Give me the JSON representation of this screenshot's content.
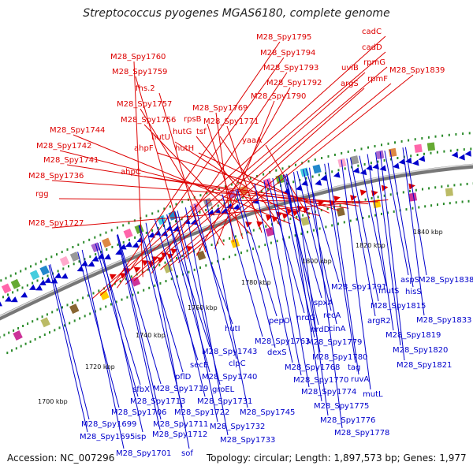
{
  "title": "Streptococcus pyogenes MGAS6180, complete genome",
  "footer": {
    "accession": "Accession: NC_007296",
    "summary": "Topology: circular; Length: 1,897,573 bp; Genes: 1,977"
  },
  "ticks": [
    "1700 kbp",
    "1720 kbp",
    "1740 kbp",
    "1760 kbp",
    "1780 kbp",
    "1800 kbp",
    "1820 kbp",
    "1840 kbp"
  ],
  "forward_labels": [
    "cadC",
    "cadD",
    "M28_Spy1795",
    "M28_Spy1794",
    "uviB",
    "rpmG",
    "M28_Spy1760",
    "M28_Spy1793",
    "argS",
    "rpmF",
    "M28_Spy1839",
    "M28_Spy1759",
    "M28_Spy1792",
    "fhs.2",
    "M28_Spy1790",
    "M28_Spy1757",
    "M28_Spy1769",
    "rpsB",
    "M28_Spy1756",
    "M28_Spy1771",
    "hutG",
    "tsf",
    "M28_Spy1744",
    "hutU",
    "yaaA",
    "M28_Spy1742",
    "hutH",
    "ahpF",
    "M28_Spy1741",
    "ahpC",
    "M28_Spy1736",
    "rgg",
    "M28_Spy1727"
  ],
  "reverse_labels": [
    "M28_Spy1791",
    "M28_Spy1838",
    "aspS",
    "hisS",
    "mutS",
    "M28_Spy1815",
    "spxA",
    "argR2",
    "M28_Spy1833",
    "recA",
    "M28_Spy1819",
    "hutI",
    "pepO",
    "nrdG",
    "cinA",
    "M28_Spy1820",
    "M28_Spy1743",
    "M28_Spy1763",
    "M28_Spy1779",
    "dexS",
    "nrdD",
    "M28_Spy1780",
    "M28_Spy1821",
    "clpC",
    "secE",
    "M28_Spy1768",
    "tag",
    "ruvA",
    "pflD",
    "M28_Spy1740",
    "M28_Spy1770",
    "sfbX",
    "M28_Spy1719",
    "groEL",
    "M28_Spy1774",
    "mutL",
    "M28_Spy1713",
    "M28_Spy1731",
    "M28_Spy1775",
    "M28_Spy1706",
    "M28_Spy1722",
    "M28_Spy1745",
    "M28_Spy1699",
    "M28_Spy1711",
    "M28_Spy1732",
    "M28_Spy1776",
    "M28_Spy1695",
    "isp",
    "M28_Spy1712",
    "M28_Spy1733",
    "M28_Spy1778",
    "M28_Spy1701",
    "sof"
  ],
  "colors": {
    "forward": "#dd0000",
    "reverse": "#0000cc",
    "backbone": "#888888",
    "tick_mark": "#2a8a2a"
  }
}
